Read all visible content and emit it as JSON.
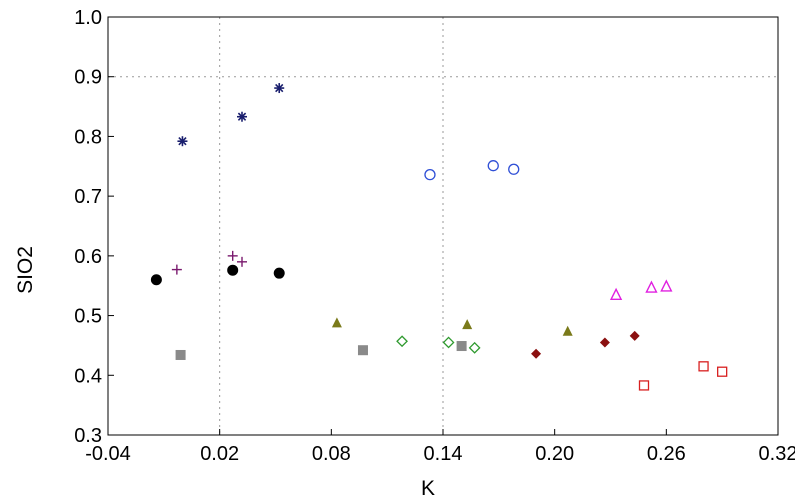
{
  "chart_data": {
    "type": "scatter",
    "title": "",
    "xlabel": "K",
    "ylabel": "SIO2",
    "xlim": [
      -0.04,
      0.32
    ],
    "ylim": [
      0.3,
      1.0
    ],
    "xticks": [
      "-0.04",
      "0.02",
      "0.08",
      "0.14",
      "0.20",
      "0.26",
      "0.32"
    ],
    "yticks": [
      "0.3",
      "0.4",
      "0.5",
      "0.6",
      "0.7",
      "0.8",
      "0.9",
      "1.0"
    ],
    "grid": "dotted vertical at x=0.02 and x=0.14, horizontal at y=0.9",
    "legend": "none",
    "series": [
      {
        "marker": "asterisk",
        "color": "#1a1f6e",
        "x": [
          0.0,
          0.032,
          0.052
        ],
        "y": [
          0.792,
          0.833,
          0.881
        ]
      },
      {
        "marker": "circle-open",
        "color": "#2f4fd6",
        "x": [
          0.133,
          0.167,
          0.178
        ],
        "y": [
          0.736,
          0.751,
          0.745
        ]
      },
      {
        "marker": "circle-filled",
        "color": "#000000",
        "x": [
          -0.014,
          0.027,
          0.052
        ],
        "y": [
          0.56,
          0.576,
          0.571
        ]
      },
      {
        "marker": "plus",
        "color": "#7a1a6e",
        "x": [
          -0.003,
          0.027,
          0.032
        ],
        "y": [
          0.577,
          0.6,
          0.59
        ]
      },
      {
        "marker": "square-filled",
        "color": "#8a8a8a",
        "x": [
          -0.001,
          0.097,
          0.15
        ],
        "y": [
          0.434,
          0.442,
          0.449
        ]
      },
      {
        "marker": "triangle-filled",
        "color": "#7a7a1a",
        "x": [
          0.083,
          0.153,
          0.207
        ],
        "y": [
          0.487,
          0.484,
          0.473
        ]
      },
      {
        "marker": "diamond-open",
        "color": "#2f9a2f",
        "x": [
          0.118,
          0.143,
          0.157
        ],
        "y": [
          0.457,
          0.455,
          0.446
        ]
      },
      {
        "marker": "diamond-filled",
        "color": "#8b1010",
        "x": [
          0.19,
          0.227,
          0.243
        ],
        "y": [
          0.436,
          0.455,
          0.466
        ]
      },
      {
        "marker": "triangle-open",
        "color": "#e020e0",
        "x": [
          0.233,
          0.252,
          0.26
        ],
        "y": [
          0.534,
          0.546,
          0.548
        ]
      },
      {
        "marker": "square-open",
        "color": "#d82020",
        "x": [
          0.248,
          0.28,
          0.29
        ],
        "y": [
          0.383,
          0.415,
          0.406
        ]
      }
    ]
  }
}
